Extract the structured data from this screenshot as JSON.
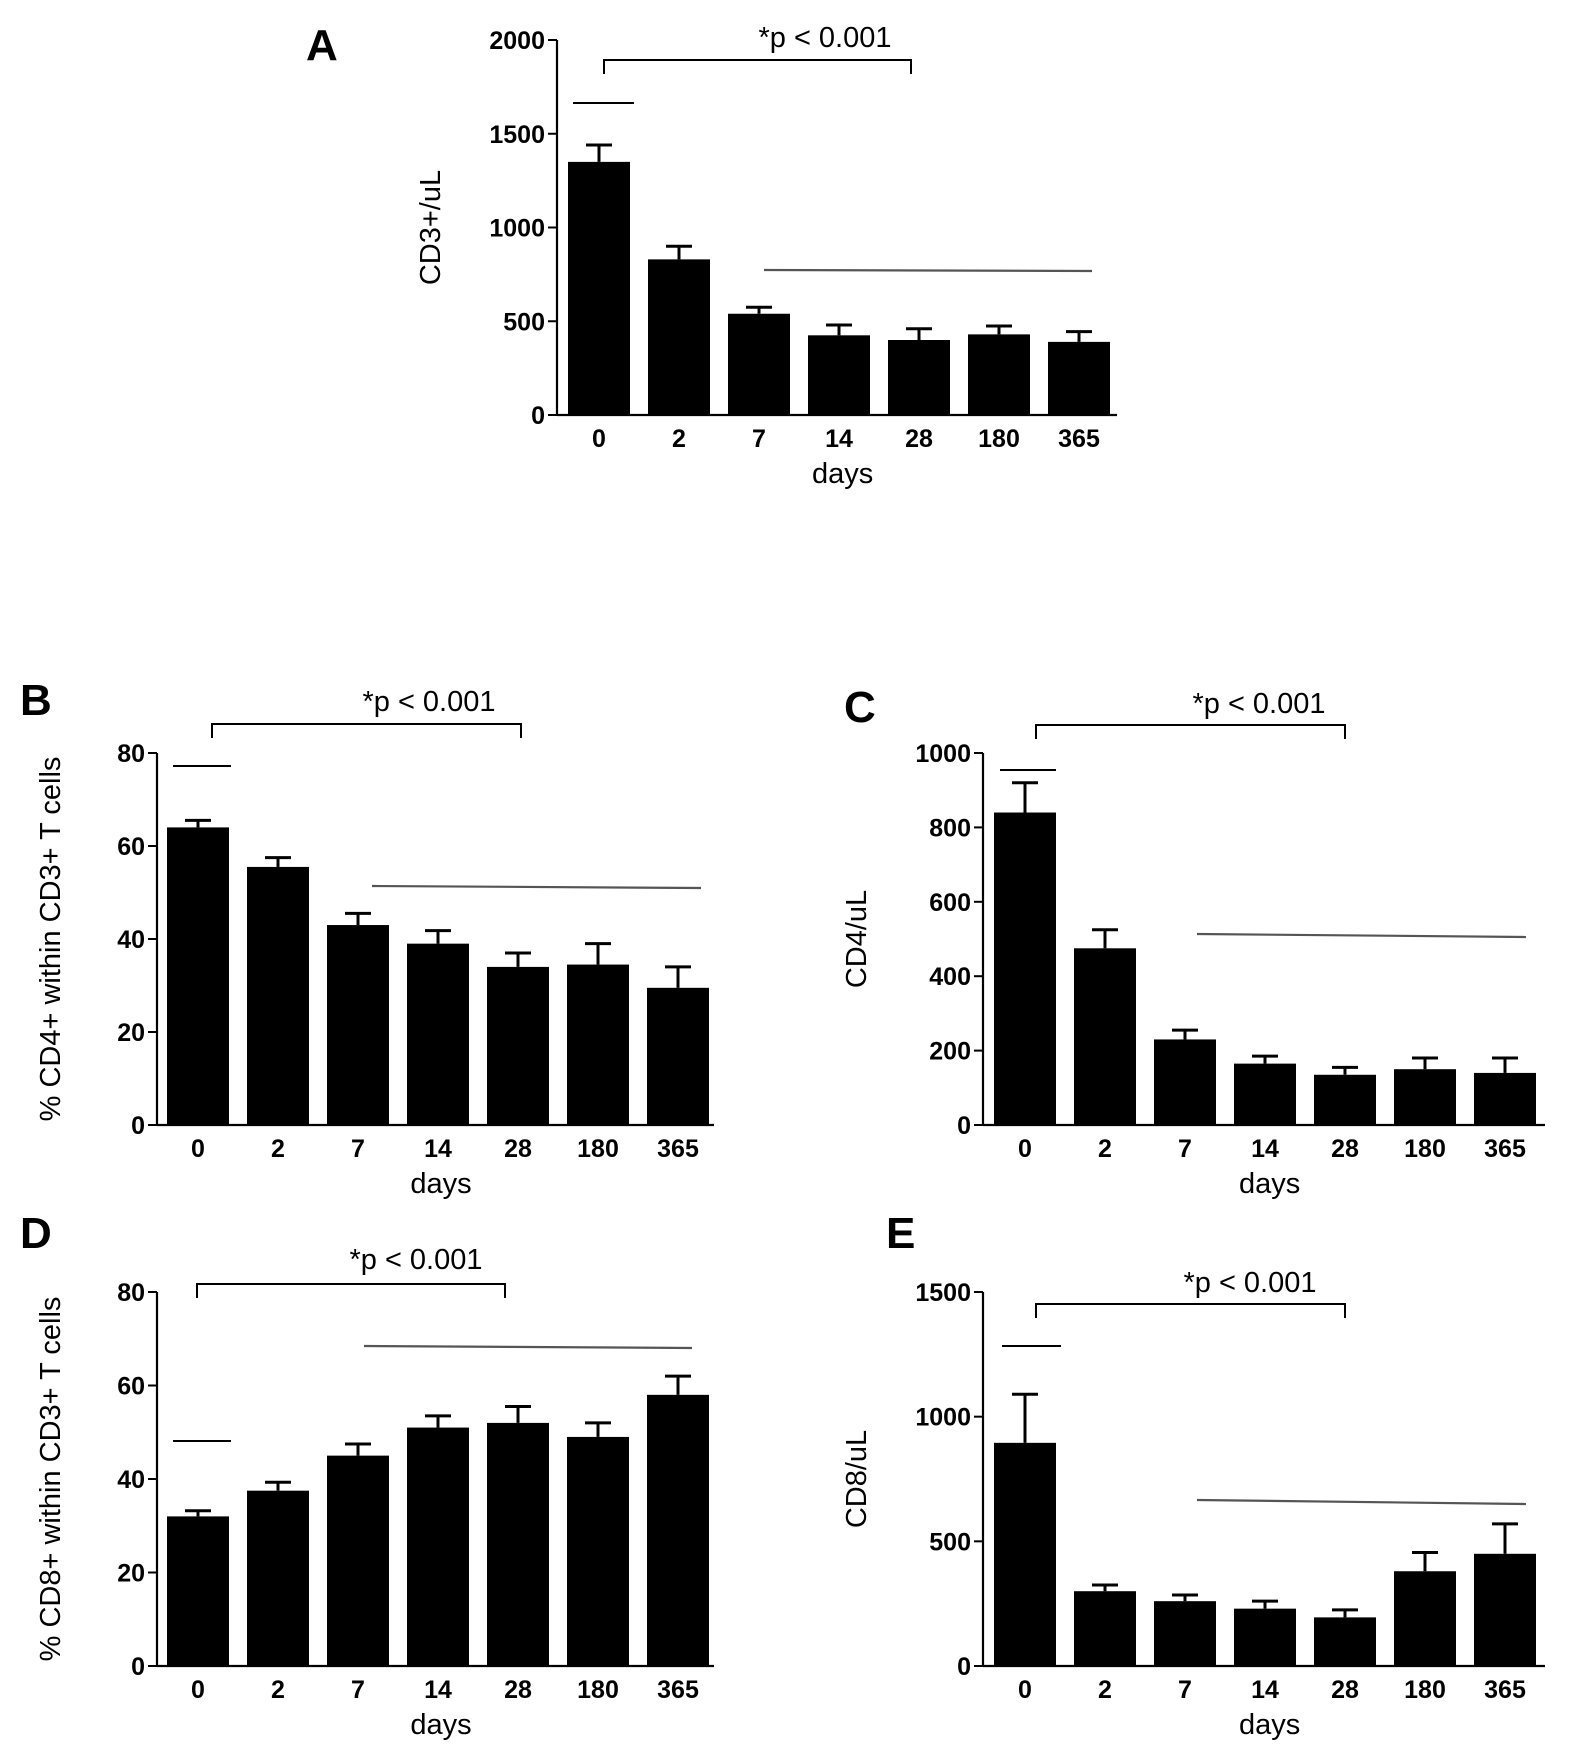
{
  "chart_data": [
    {
      "panel": "A",
      "type": "bar",
      "categories": [
        "0",
        "2",
        "7",
        "14",
        "28",
        "180",
        "365"
      ],
      "values": [
        1350,
        830,
        540,
        425,
        400,
        430,
        390
      ],
      "errors": [
        90,
        70,
        35,
        55,
        60,
        45,
        55
      ],
      "xlabel": "days",
      "ylabel": "CD3+/uL",
      "ylim": [
        0,
        2000
      ],
      "yticks": [
        "0",
        "500",
        "1000",
        "1500",
        "2000"
      ],
      "significance": "*p < 0.001",
      "grid": false,
      "legend": "none"
    },
    {
      "panel": "B",
      "type": "bar",
      "categories": [
        "0",
        "2",
        "7",
        "14",
        "28",
        "180",
        "365"
      ],
      "values": [
        64,
        55.5,
        43,
        39,
        34,
        34.5,
        29.5
      ],
      "errors": [
        1.5,
        2.0,
        2.5,
        2.8,
        3.0,
        4.5,
        4.5
      ],
      "xlabel": "days",
      "ylabel": "% CD4+ within CD3+ T cells",
      "ylim": [
        0,
        80
      ],
      "yticks": [
        "0",
        "20",
        "40",
        "60",
        "80"
      ],
      "significance": "*p < 0.001",
      "grid": false,
      "legend": "none"
    },
    {
      "panel": "C",
      "type": "bar",
      "categories": [
        "0",
        "2",
        "7",
        "14",
        "28",
        "180",
        "365"
      ],
      "values": [
        840,
        475,
        230,
        165,
        135,
        150,
        140
      ],
      "errors": [
        80,
        50,
        25,
        20,
        20,
        30,
        40
      ],
      "xlabel": "days",
      "ylabel": "CD4/uL",
      "ylim": [
        0,
        1000
      ],
      "yticks": [
        "0",
        "200",
        "400",
        "600",
        "800",
        "1000"
      ],
      "significance": "*p < 0.001",
      "grid": false,
      "legend": "none"
    },
    {
      "panel": "D",
      "type": "bar",
      "categories": [
        "0",
        "2",
        "7",
        "14",
        "28",
        "180",
        "365"
      ],
      "values": [
        32,
        37.5,
        45,
        51,
        52,
        49,
        58
      ],
      "errors": [
        1.2,
        1.8,
        2.5,
        2.5,
        3.5,
        3.0,
        4.0
      ],
      "xlabel": "days",
      "ylabel": "% CD8+ within CD3+ T cells",
      "ylim": [
        0,
        80
      ],
      "yticks": [
        "0",
        "20",
        "40",
        "60",
        "80"
      ],
      "significance": "*p < 0.001",
      "grid": false,
      "legend": "none"
    },
    {
      "panel": "E",
      "type": "bar",
      "categories": [
        "0",
        "2",
        "7",
        "14",
        "28",
        "180",
        "365"
      ],
      "values": [
        895,
        300,
        260,
        230,
        195,
        380,
        450
      ],
      "errors": [
        195,
        25,
        25,
        30,
        30,
        75,
        120
      ],
      "xlabel": "days",
      "ylabel": "CD8/uL",
      "ylim": [
        0,
        1500
      ],
      "yticks": [
        "0",
        "500",
        "1000",
        "1500"
      ],
      "significance": "*p < 0.001",
      "grid": false,
      "legend": "none"
    }
  ]
}
